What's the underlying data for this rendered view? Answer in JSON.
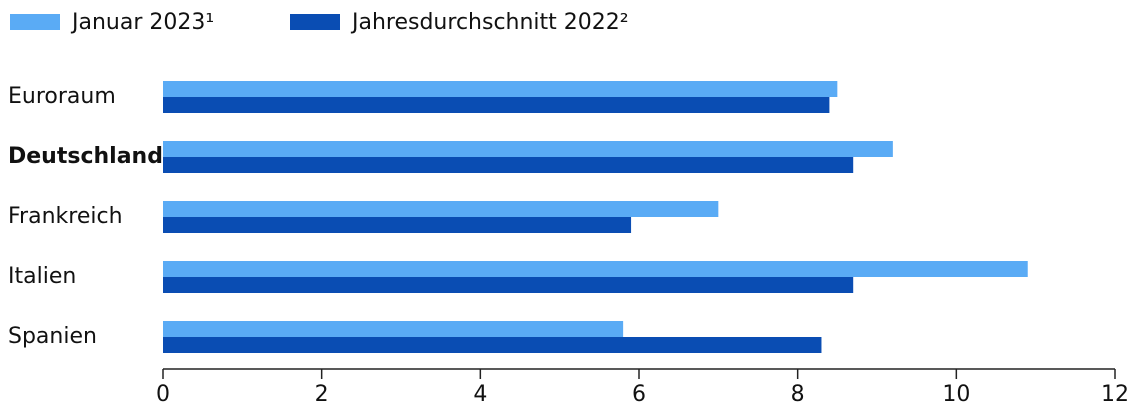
{
  "chart_data": {
    "type": "hbar",
    "categories": [
      "Euroraum",
      "Deutschland",
      "Frankreich",
      "Italien",
      "Spanien"
    ],
    "series": [
      {
        "name": "Januar 2023¹",
        "color": "#5aabf5",
        "values": [
          8.5,
          9.2,
          7.0,
          10.9,
          5.8
        ]
      },
      {
        "name": "Jahresdurchschnitt 2022²",
        "color": "#0a4db3",
        "values": [
          8.4,
          8.7,
          5.9,
          8.7,
          8.3
        ]
      }
    ],
    "xlim": [
      0,
      12
    ],
    "xticks": [
      0,
      2,
      4,
      6,
      8,
      10,
      12
    ],
    "grid": false
  }
}
